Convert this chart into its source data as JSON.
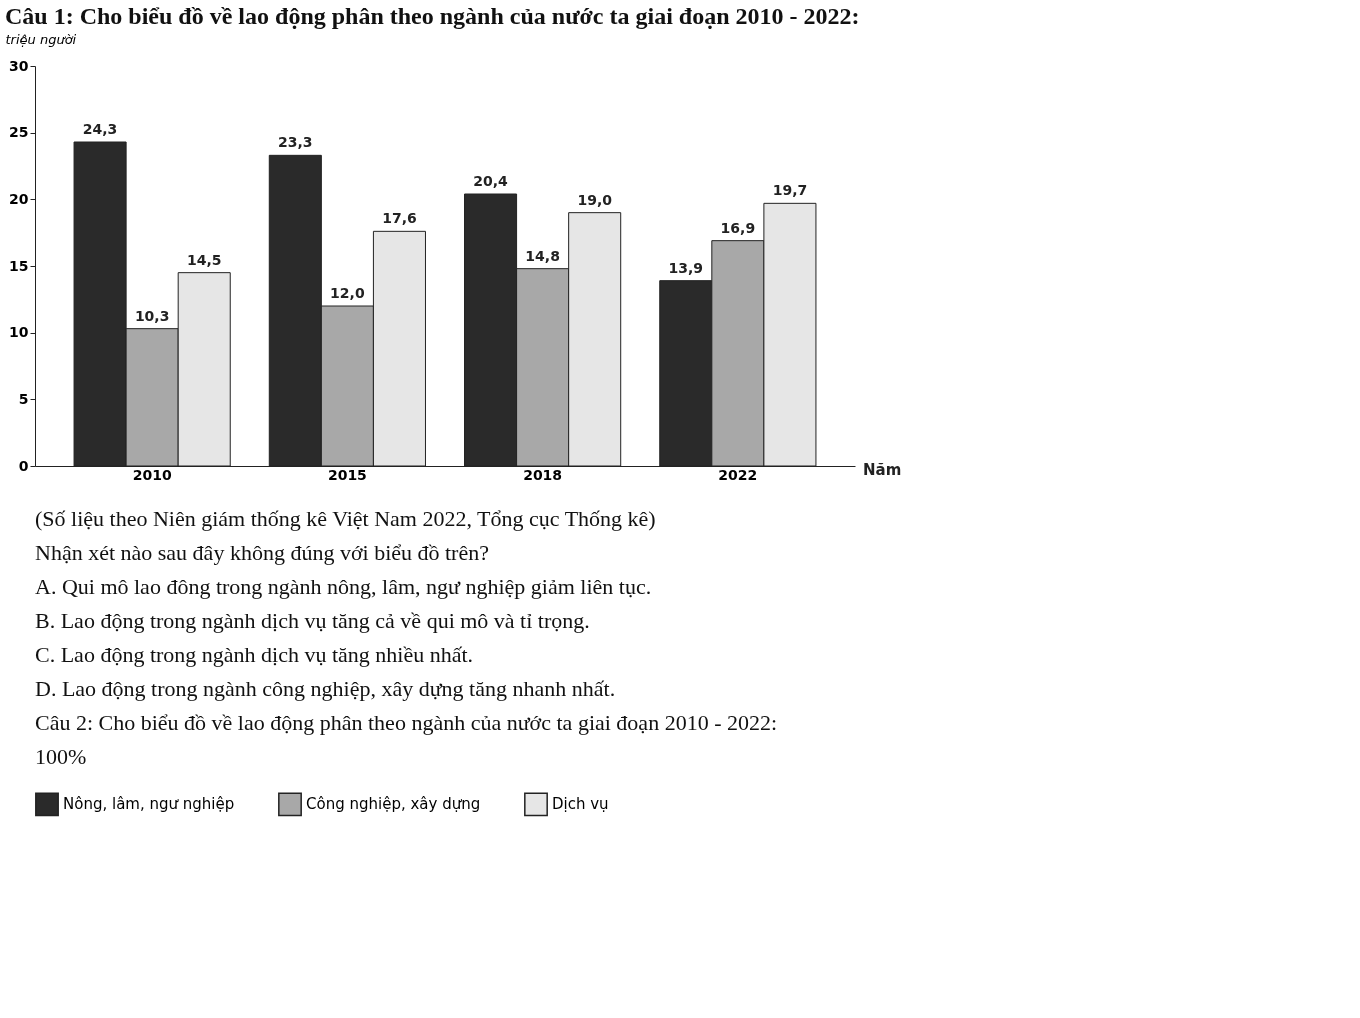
{
  "chart_data": {
    "type": "bar",
    "title": "Câu 1: Cho biểu đồ về lao động phân theo ngành của nước ta giai đoạn 2010 - 2022:",
    "ylabel": "triệu người",
    "xlabel": "Năm",
    "categories": [
      "2010",
      "2015",
      "2018",
      "2022"
    ],
    "series": [
      {
        "name": "Nông, lâm, ngư nghiệp",
        "color": "#2a2a2a",
        "values": [
          24.3,
          23.3,
          20.4,
          13.9
        ],
        "value_labels": [
          "24,3",
          "23,3",
          "20,4",
          "13,9"
        ]
      },
      {
        "name": "Công nghiệp, xây dựng",
        "color": "#a8a8a8",
        "values": [
          10.3,
          12.0,
          14.8,
          16.9
        ],
        "value_labels": [
          "10,3",
          "12,0",
          "14,8",
          "16,9"
        ]
      },
      {
        "name": "Dịch vụ",
        "color": "#e6e6e6",
        "values": [
          14.5,
          17.6,
          19.0,
          19.7
        ],
        "value_labels": [
          "14,5",
          "17,6",
          "19,0",
          "19,7"
        ]
      }
    ],
    "ylim": [
      0,
      30
    ],
    "yticks": [
      0,
      5,
      10,
      15,
      20,
      25,
      30
    ],
    "grid": false,
    "legend": "bottom",
    "annotations": [
      "(Số liệu theo Niên giám thống kê Việt Nam 2022, Tổng cục Thống kê)",
      "Nhận xét nào sau đây không đúng với biểu đồ trên?",
      "A. Qui mô lao đông trong ngành nông, lâm, ngư nghiệp giảm liên tục.",
      "B. Lao động trong ngành dịch vụ tăng cả về qui mô và tỉ trọng.",
      "C. Lao động trong ngành dịch vụ tăng nhiều nhất.",
      "D. Lao động trong ngành công nghiệp, xây dựng tăng nhanh nhất.",
      "Câu 2: Cho biểu đồ về lao động phân theo ngành của nước ta giai đoạn 2010 - 2022:",
      "100%"
    ]
  }
}
